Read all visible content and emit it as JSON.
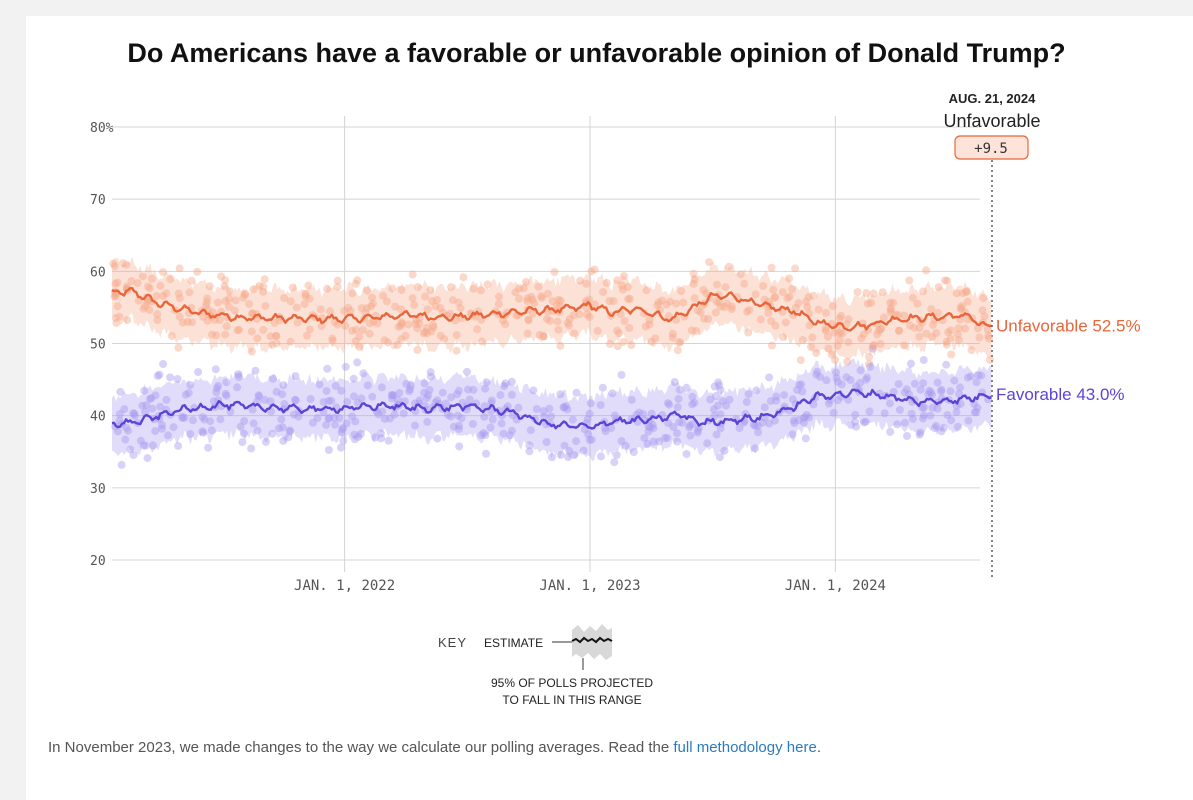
{
  "colors": {
    "unfavorable": "#e8663a",
    "favorable": "#5b45d6",
    "unfavorable_dot": "#f5a88a",
    "favorable_dot": "#a99cf0",
    "grid": "#d4d4d4",
    "background": "#ffffff"
  },
  "chart_data": {
    "type": "line",
    "title": "Do Americans have a favorable or unfavorable opinion of Donald Trump?",
    "x_start": "2021-01-20",
    "x_end": "2024-08-21",
    "ylim": [
      20,
      80
    ],
    "yticks": [
      {
        "v": 80,
        "label": "80%"
      },
      {
        "v": 70,
        "label": "70"
      },
      {
        "v": 60,
        "label": "60"
      },
      {
        "v": 50,
        "label": "50"
      },
      {
        "v": 40,
        "label": "40"
      },
      {
        "v": 30,
        "label": "30"
      },
      {
        "v": 20,
        "label": "20"
      }
    ],
    "xticks": [
      {
        "date": "2022-01-01",
        "label": "JAN. 1, 2022"
      },
      {
        "date": "2023-01-01",
        "label": "JAN. 1, 2023"
      },
      {
        "date": "2024-01-01",
        "label": "JAN. 1, 2024"
      }
    ],
    "grid": true,
    "series": [
      {
        "name": "Unfavorable",
        "end_label": "Unfavorable 52.5%",
        "band_width": 4,
        "points": [
          [
            "2021-01-20",
            57
          ],
          [
            "2021-02-20",
            57.2
          ],
          [
            "2021-04-01",
            55.5
          ],
          [
            "2021-06-01",
            54.2
          ],
          [
            "2021-08-01",
            53.6
          ],
          [
            "2021-10-01",
            53.5
          ],
          [
            "2021-12-01",
            53.4
          ],
          [
            "2022-02-01",
            53.5
          ],
          [
            "2022-04-01",
            54
          ],
          [
            "2022-06-01",
            53.6
          ],
          [
            "2022-08-01",
            54
          ],
          [
            "2022-10-01",
            54.5
          ],
          [
            "2022-12-01",
            54.8
          ],
          [
            "2023-01-01",
            55.3
          ],
          [
            "2023-02-01",
            54.3
          ],
          [
            "2023-03-15",
            54.8
          ],
          [
            "2023-05-01",
            53.3
          ],
          [
            "2023-06-01",
            54.8
          ],
          [
            "2023-07-01",
            56.5
          ],
          [
            "2023-08-01",
            56.6
          ],
          [
            "2023-09-15",
            55.2
          ],
          [
            "2023-11-01",
            54.5
          ],
          [
            "2023-12-01",
            53
          ],
          [
            "2024-01-15",
            52.3
          ],
          [
            "2024-02-15",
            52.5
          ],
          [
            "2024-04-01",
            53.4
          ],
          [
            "2024-06-01",
            53.7
          ],
          [
            "2024-07-15",
            53.9
          ],
          [
            "2024-08-10",
            52.3
          ],
          [
            "2024-08-21",
            52.5
          ]
        ]
      },
      {
        "name": "Favorable",
        "end_label": "Favorable 43.0%",
        "band_width": 4,
        "points": [
          [
            "2021-01-20",
            38.8
          ],
          [
            "2021-03-01",
            39.2
          ],
          [
            "2021-05-01",
            40.8
          ],
          [
            "2021-07-01",
            41.5
          ],
          [
            "2021-09-01",
            41.2
          ],
          [
            "2021-11-01",
            40.9
          ],
          [
            "2022-01-01",
            41
          ],
          [
            "2022-03-01",
            41.4
          ],
          [
            "2022-05-01",
            41
          ],
          [
            "2022-07-01",
            41.3
          ],
          [
            "2022-09-01",
            40.6
          ],
          [
            "2022-11-01",
            38.8
          ],
          [
            "2023-01-01",
            38.4
          ],
          [
            "2023-02-01",
            39.2
          ],
          [
            "2023-04-01",
            39.4
          ],
          [
            "2023-05-15",
            40.2
          ],
          [
            "2023-06-15",
            39
          ],
          [
            "2023-08-01",
            39.4
          ],
          [
            "2023-09-15",
            39.8
          ],
          [
            "2023-11-01",
            41.2
          ],
          [
            "2023-12-01",
            42.6
          ],
          [
            "2024-02-01",
            43.2
          ],
          [
            "2024-03-15",
            42.8
          ],
          [
            "2024-05-01",
            41.9
          ],
          [
            "2024-07-01",
            42.2
          ],
          [
            "2024-08-01",
            42.6
          ],
          [
            "2024-08-21",
            43.0
          ]
        ]
      }
    ],
    "hover": {
      "date_label": "AUG. 21, 2024",
      "series_label": "Unfavorable",
      "margin_label": "+9.5"
    }
  },
  "key": {
    "title": "KEY",
    "estimate": "ESTIMATE",
    "range_line1": "95% OF POLLS PROJECTED",
    "range_line2": "TO FALL IN THIS RANGE"
  },
  "footnote": {
    "text": "In November 2023, we made changes to the way we calculate our polling averages. Read the ",
    "link": "full methodology here",
    "end": "."
  }
}
